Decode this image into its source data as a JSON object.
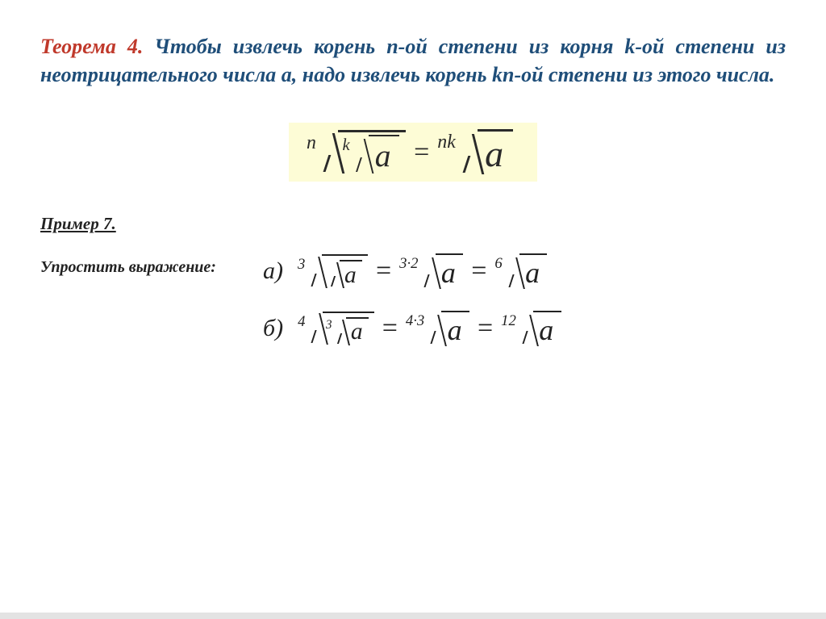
{
  "theorem": {
    "title": "Теорема 4.",
    "title_color": "#c0392b",
    "body_color": "#1f4e79",
    "fontsize": 26,
    "p1": "  Чтобы извлечь корень ",
    "n": "n",
    "p2": "-ой степени из корня ",
    "k": "k",
    "p3": "-ой степени из неотрицательного числа ",
    "a": "a",
    "p4": ", надо извлечь корень ",
    "kn": "kn",
    "p5": "-ой степени из этого числа."
  },
  "main_formula": {
    "background_color": "#fdfcd6",
    "outer_index": "n",
    "inner_index": "k",
    "radicand": "a",
    "equals": "=",
    "rhs_index": "nk",
    "rhs_radicand": "a",
    "fontsize": 46
  },
  "example": {
    "label": "Пример 7.",
    "prompt": "Упростить выражение:",
    "fontsize": 30,
    "items": [
      {
        "letter": "а",
        "lhs_outer_index": "3",
        "lhs_inner_index": "",
        "radicand": "a",
        "mid_index": "3·2",
        "rhs_index": "6"
      },
      {
        "letter": "б",
        "lhs_outer_index": "4",
        "lhs_inner_index": "3",
        "radicand": "a",
        "mid_index": "4·3",
        "rhs_index": "12"
      }
    ]
  },
  "equals": "=",
  "paren": ")"
}
